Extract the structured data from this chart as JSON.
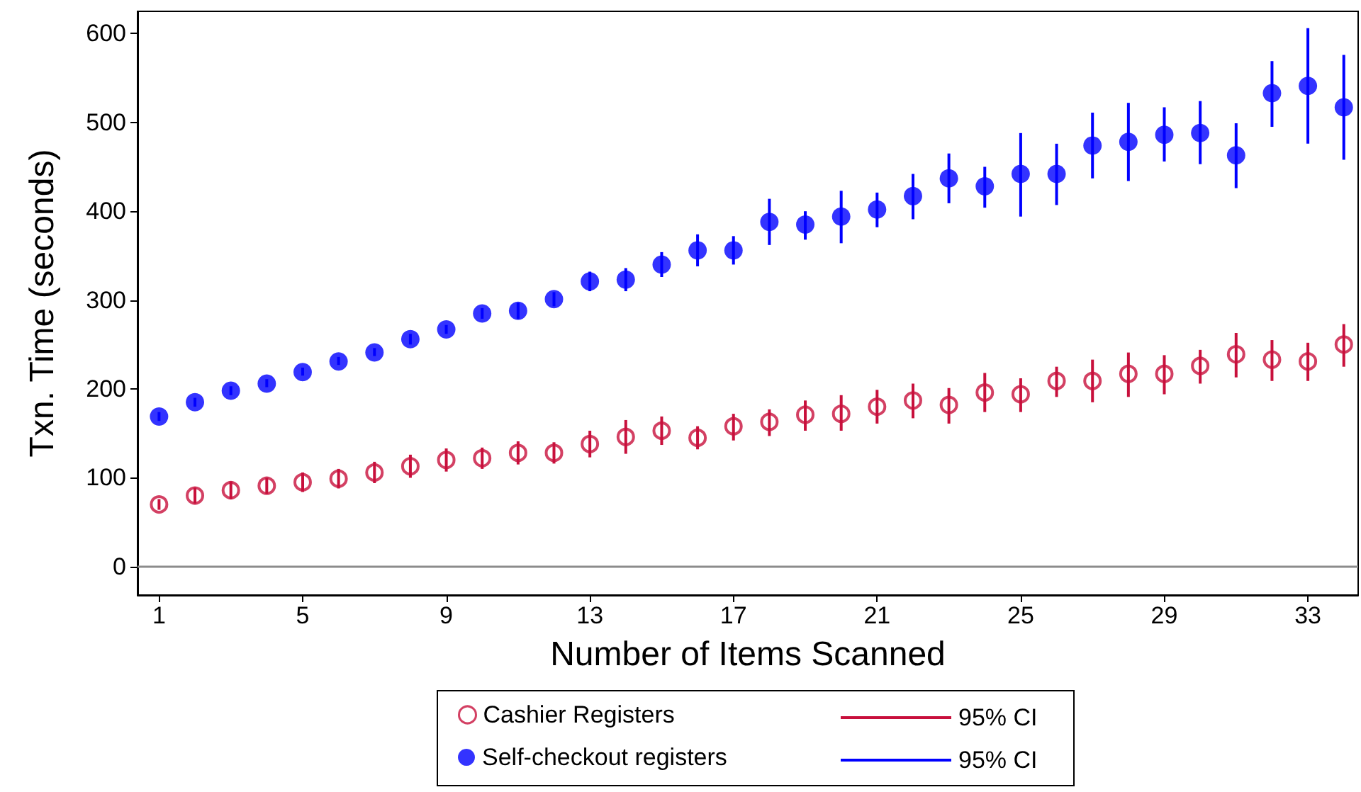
{
  "chart_data": {
    "type": "scatter",
    "xlabel": "Number of Items Scanned",
    "ylabel": "Txn. Time (seconds)",
    "x": [
      1,
      2,
      3,
      4,
      5,
      6,
      7,
      8,
      9,
      10,
      11,
      12,
      13,
      14,
      15,
      16,
      17,
      18,
      19,
      20,
      21,
      22,
      23,
      24,
      25,
      26,
      27,
      28,
      29,
      30,
      31,
      32,
      33,
      34
    ],
    "xlim": [
      0.4,
      34.4
    ],
    "xticks": [
      1,
      5,
      9,
      13,
      17,
      21,
      25,
      29,
      33
    ],
    "ylim": [
      -32,
      625
    ],
    "yticks": [
      0,
      100,
      200,
      300,
      400,
      500,
      600
    ],
    "grid": false,
    "legend": "bottom",
    "ref_lines": [
      {
        "axis": "y",
        "value": 0,
        "color": "#8c8c8c"
      }
    ],
    "annotations": [
      "95% CI",
      "95% CI"
    ],
    "series": [
      {
        "name": "Cashier Registers",
        "color": "#c8103c",
        "marker": "open circle",
        "values": [
          70,
          80,
          86,
          91,
          95,
          99,
          106,
          113,
          120,
          122,
          128,
          128,
          138,
          146,
          153,
          145,
          158,
          163,
          171,
          172,
          180,
          187,
          182,
          196,
          194,
          209,
          209,
          217,
          217,
          226,
          239,
          233,
          231,
          250
        ],
        "errors": [
          [
            64,
            76
          ],
          [
            71,
            89
          ],
          [
            76,
            96
          ],
          [
            82,
            100
          ],
          [
            84,
            106
          ],
          [
            88,
            110
          ],
          [
            94,
            118
          ],
          [
            100,
            126
          ],
          [
            107,
            133
          ],
          [
            110,
            134
          ],
          [
            115,
            141
          ],
          [
            116,
            140
          ],
          [
            123,
            153
          ],
          [
            127,
            165
          ],
          [
            137,
            169
          ],
          [
            132,
            158
          ],
          [
            142,
            172
          ],
          [
            147,
            177
          ],
          [
            153,
            187
          ],
          [
            153,
            193
          ],
          [
            161,
            199
          ],
          [
            167,
            206
          ],
          [
            161,
            201
          ],
          [
            174,
            218
          ],
          [
            174,
            212
          ],
          [
            191,
            225
          ],
          [
            185,
            233
          ],
          [
            191,
            241
          ],
          [
            194,
            238
          ],
          [
            206,
            244
          ],
          [
            213,
            263
          ],
          [
            209,
            255
          ],
          [
            209,
            252
          ],
          [
            225,
            273
          ]
        ]
      },
      {
        "name": "Self-checkout registers",
        "color": "#0000ff",
        "marker": "circle",
        "values": [
          169,
          185,
          198,
          206,
          219,
          231,
          241,
          256,
          267,
          285,
          288,
          301,
          321,
          323,
          340,
          356,
          356,
          388,
          385,
          394,
          402,
          417,
          437,
          428,
          442,
          442,
          474,
          478,
          486,
          488,
          463,
          533,
          541,
          517
        ],
        "errors": [
          [
            164,
            174
          ],
          [
            180,
            190
          ],
          [
            193,
            203
          ],
          [
            202,
            211
          ],
          [
            215,
            224
          ],
          [
            227,
            236
          ],
          [
            237,
            246
          ],
          [
            250,
            262
          ],
          [
            262,
            272
          ],
          [
            279,
            291
          ],
          [
            279,
            297
          ],
          [
            293,
            309
          ],
          [
            310,
            332
          ],
          [
            310,
            336
          ],
          [
            326,
            354
          ],
          [
            338,
            374
          ],
          [
            340,
            372
          ],
          [
            362,
            414
          ],
          [
            368,
            400
          ],
          [
            364,
            423
          ],
          [
            382,
            421
          ],
          [
            391,
            442
          ],
          [
            409,
            465
          ],
          [
            404,
            450
          ],
          [
            394,
            488
          ],
          [
            407,
            476
          ],
          [
            437,
            511
          ],
          [
            434,
            522
          ],
          [
            456,
            517
          ],
          [
            453,
            524
          ],
          [
            426,
            499
          ],
          [
            495,
            569
          ],
          [
            476,
            606
          ],
          [
            458,
            576
          ]
        ]
      }
    ]
  }
}
